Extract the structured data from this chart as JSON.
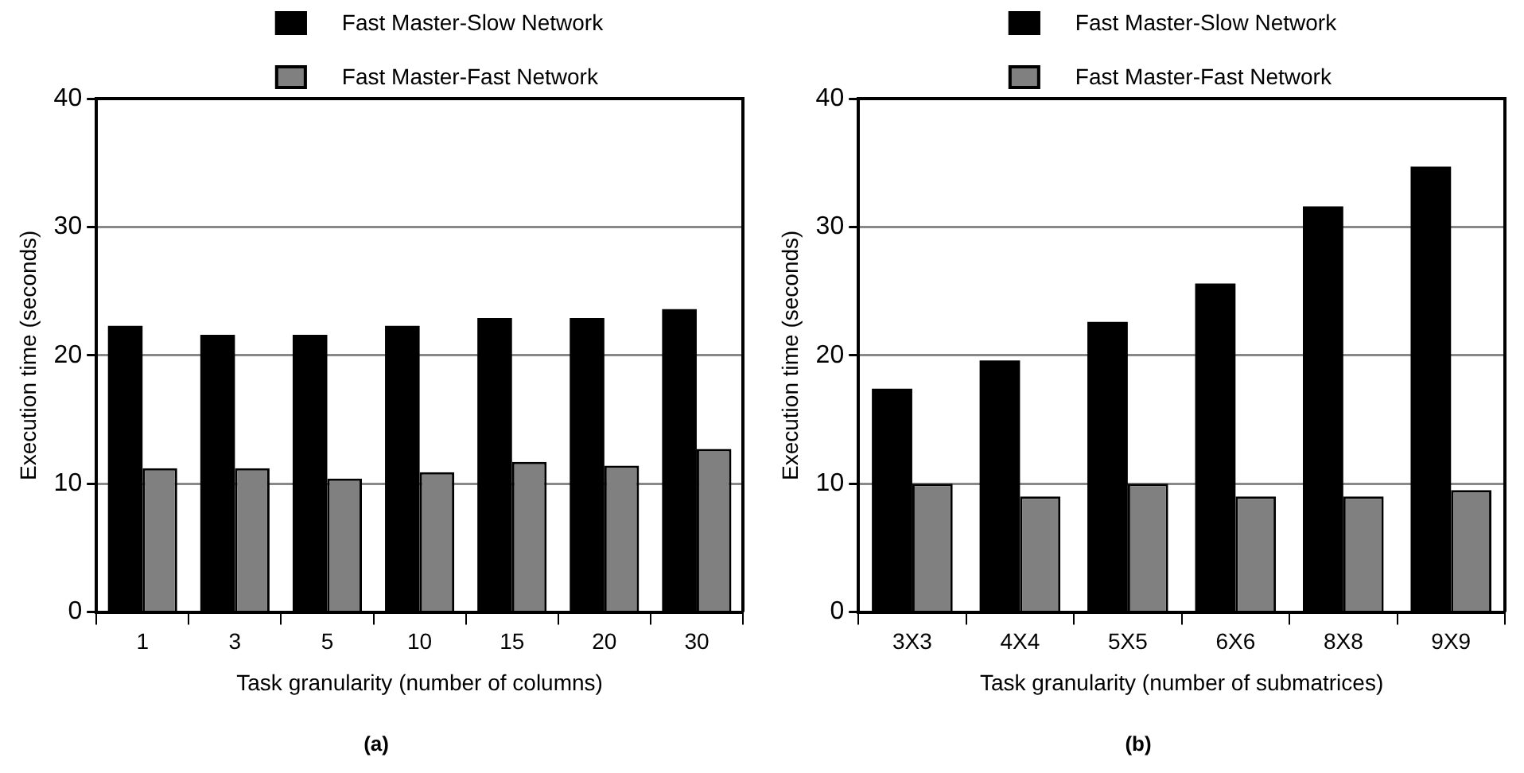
{
  "chart_data": [
    {
      "type": "bar",
      "title": "(a)",
      "xlabel": "Task granularity (number of columns)",
      "ylabel": "Execution time (seconds)",
      "categories": [
        "1",
        "3",
        "5",
        "10",
        "15",
        "20",
        "30"
      ],
      "series": [
        {
          "name": "Fast Master-Slow Network",
          "color": "#000000",
          "values": [
            22.3,
            21.6,
            21.6,
            22.3,
            22.9,
            22.9,
            23.6
          ]
        },
        {
          "name": "Fast Master-Fast Network",
          "color": "#808080",
          "values": [
            11.2,
            11.2,
            10.4,
            10.9,
            11.7,
            11.4,
            12.7
          ]
        }
      ],
      "ylim": [
        0,
        40
      ],
      "yticks": [
        0,
        10,
        20,
        30,
        40
      ],
      "grid": "y",
      "legend": "top"
    },
    {
      "type": "bar",
      "title": "(b)",
      "xlabel": "Task granularity (number of submatrices)",
      "ylabel": "Execution time (seconds)",
      "categories": [
        "3X3",
        "4X4",
        "5X5",
        "6X6",
        "8X8",
        "9X9"
      ],
      "series": [
        {
          "name": "Fast Master-Slow Network",
          "color": "#000000",
          "values": [
            17.4,
            19.6,
            22.6,
            25.6,
            31.6,
            34.7
          ]
        },
        {
          "name": "Fast Master-Fast Network",
          "color": "#808080",
          "values": [
            10.0,
            9.0,
            10.0,
            9.0,
            9.0,
            9.5
          ]
        }
      ],
      "ylim": [
        0,
        40
      ],
      "yticks": [
        0,
        10,
        20,
        30,
        40
      ],
      "grid": "y",
      "legend": "top"
    }
  ]
}
